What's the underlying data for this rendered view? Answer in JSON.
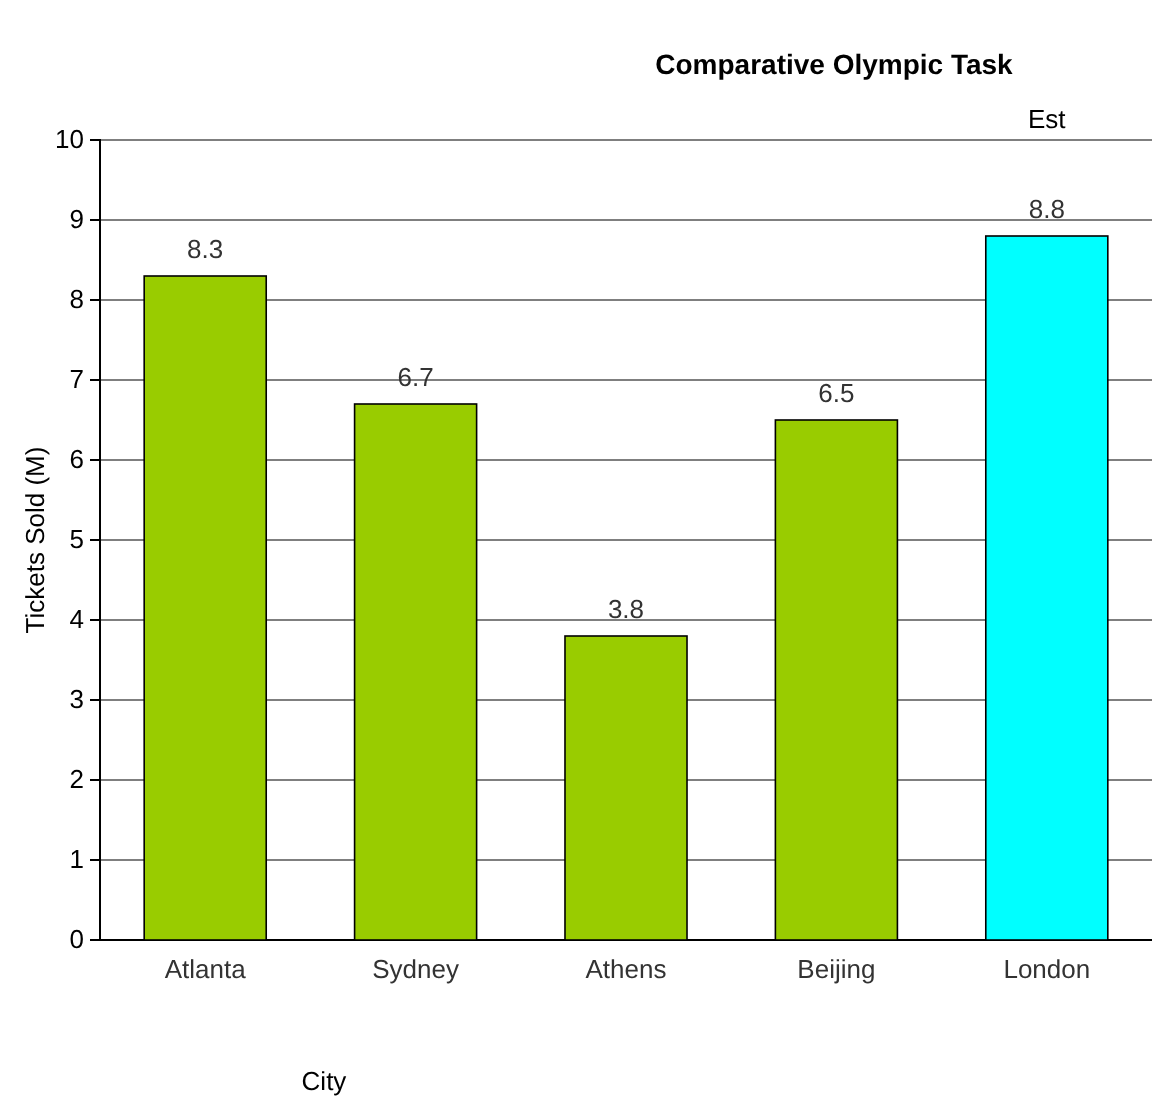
{
  "chart_data": {
    "type": "bar",
    "title": "Comparative Olympic Task",
    "xlabel": "City",
    "ylabel": "Tickets Sold (M)",
    "categories": [
      "Atlanta",
      "Sydney",
      "Athens",
      "Beijing",
      "London"
    ],
    "values": [
      8.3,
      6.7,
      3.8,
      6.5,
      8.8
    ],
    "colors": [
      "#99cc00",
      "#99cc00",
      "#99cc00",
      "#99cc00",
      "#00ffff"
    ],
    "ylim": [
      0,
      10
    ],
    "yticks": [
      0,
      1,
      2,
      3,
      4,
      5,
      6,
      7,
      8,
      9,
      10
    ],
    "grid": "y",
    "data_labels": true,
    "annotations": [
      "Est"
    ]
  }
}
